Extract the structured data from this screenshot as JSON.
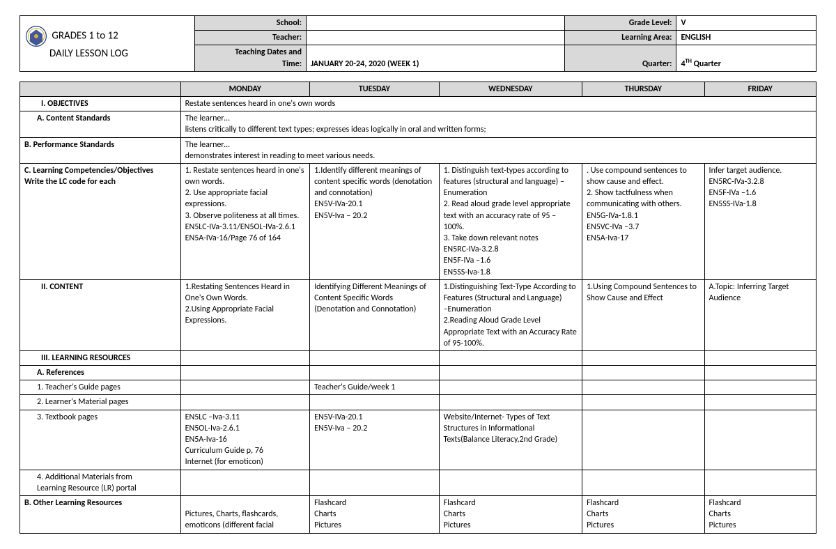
{
  "header": {
    "title_line1": "GRADES 1 to 12",
    "title_line2": "DAILY LESSON LOG",
    "school_lbl": "School:",
    "school_val": "",
    "grade_lbl": "Grade Level:",
    "grade_val": "V",
    "teacher_lbl": "Teacher:",
    "teacher_val": "",
    "area_lbl": "Learning Area:",
    "area_val": "ENGLISH",
    "dates_lbl": "Teaching Dates and Time:",
    "dates_val": "JANUARY 20-24, 2020 (WEEK 1)",
    "quarter_lbl": "Quarter:",
    "quarter_val": "4ᵀᴴ Quarter"
  },
  "days": {
    "mon": "MONDAY",
    "tue": "TUESDAY",
    "wed": "WEDNESDAY",
    "thu": "THURSDAY",
    "fri": "FRIDAY"
  },
  "rows": {
    "objectives_lbl": "I.          OBJECTIVES",
    "objectives_val": "Restate sentences heard in one's own words",
    "contentstd_lbl": "A.   Content Standards",
    "contentstd_val": "The learner…\nlistens critically to different text types; expresses ideas logically in oral and written forms;",
    "perfstd_lbl": "B.    Performance Standards",
    "perfstd_val": "The learner…\ndemonstrates interest in reading to meet various needs.",
    "lc_lbl": "C.    Learning Competencies/Objectives\n        Write the LC code for each",
    "lc_mon": "1. Restate sentences heard in one's own words.\n2. Use appropriate facial expressions.\n3. Observe politeness at all times.\nEN5LC-IVa-3.11/EN5OL-IVa-2.6.1\nEN5A-IVa-16/Page 76 of 164",
    "lc_tue": "1.Identify different meanings of content specific words (denotation and connotation)\nEN5V-IVa-20.1\nEN5V-Iva – 20.2",
    "lc_wed": "1. Distinguish text-types according to features (structural and language) – Enumeration\n2. Read aloud grade level appropriate text with an accuracy rate of 95 – 100%.\n3. Take down relevant notes\nEN5RC-IVa-3.2.8\nEN5F-IVa –1.6\nEN5SS-Iva-1.8",
    "lc_thu": ". Use compound sentences to show cause and effect.\n2. Show tactfulness when communicating with others.\nEN5G-IVa-1.8.1\nEN5VC-IVa –3.7\nEN5A-Iva-17",
    "lc_fri": "Infer target audience.\nEN5RC-IVa-3.2.8\nEN5F-IVa –1.6\nEN5SS-IVa-1.8",
    "content_lbl": "II.           CONTENT",
    "content_mon": "1.Restating Sentences Heard in One's Own Words.\n2.Using Appropriate Facial Expressions.",
    "content_tue": "Identifying Different Meanings of Content Specific Words (Denotation and Connotation)",
    "content_wed": "1.Distinguishing Text-Type According to Features (Structural and Language)\n –Enumeration\n2.Reading Aloud Grade Level Appropriate Text with an Accuracy Rate of 95-100%.",
    "content_thu": "1.Using Compound Sentences to Show Cause and Effect",
    "content_fri": "A.Topic: Inferring Target Audience",
    "lr_lbl": "III.          LEARNING RESOURCES",
    "ref_lbl": "A.   References",
    "tg_lbl": "1.   Teacher's Guide pages",
    "tg_tue": "Teacher's Guide/week 1",
    "lm_lbl": "2. Learner's Material pages",
    "tb_lbl": "3. Textbook pages",
    "tb_mon": "EN5LC –Iva-3.11\nEN5OL-Iva-2.6.1\nEN5A-Iva-16\nCurriculum Guide p, 76\nInternet (for emoticon)",
    "tb_tue": "EN5V-IVa-20.1\nEN5V-Iva – 20.2",
    "tb_wed": "Website/Internet- Types of Text Structures in Informational Texts(Balance Literacy,2nd Grade)",
    "addl_lbl": "4. Additional Materials from\n    Learning Resource (LR) portal",
    "other_lbl": "B.    Other Learning Resources",
    "other_mon": "\nPictures, Charts, flashcards, emoticons (different facial",
    "other_tue": "Flashcard\nCharts\nPictures",
    "other_wed": "Flashcard\nCharts\nPictures",
    "other_thu": "Flashcard\nCharts\nPictures",
    "other_fri": "Flashcard\nCharts\nPictures"
  }
}
